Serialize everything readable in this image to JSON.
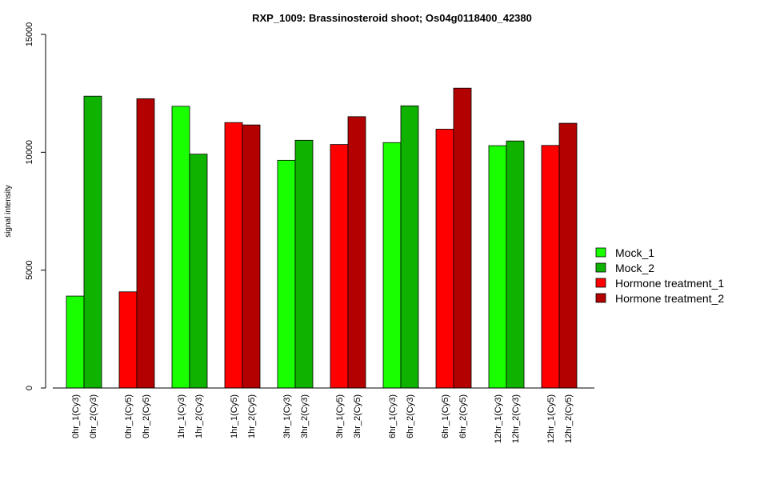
{
  "chart_data": {
    "type": "bar",
    "title": "RXP_1009: Brassinosteroid shoot; Os04g0118400_42380",
    "xlabel": "",
    "ylabel": "signal intensity",
    "ylim": [
      0,
      15000
    ],
    "yticks": [
      0,
      5000,
      10000,
      15000
    ],
    "grid": false,
    "legend_position": "right",
    "legend": [
      {
        "name": "Mock_1",
        "color": "#19ff00"
      },
      {
        "name": "Mock_2",
        "color": "#10b200"
      },
      {
        "name": "Hormone treatment_1",
        "color": "#ff0000"
      },
      {
        "name": "Hormone treatment_2",
        "color": "#b30000"
      }
    ],
    "bars": [
      {
        "label": "0hr_1(Cy3)",
        "value": 3900,
        "color": "#19ff00"
      },
      {
        "label": "0hr_2(Cy3)",
        "value": 12380,
        "color": "#10b200"
      },
      {
        "label": "0hr_1(Cy5)",
        "value": 4080,
        "color": "#ff0000"
      },
      {
        "label": "0hr_2(Cy5)",
        "value": 12270,
        "color": "#b30000"
      },
      {
        "label": "1hr_1(Cy3)",
        "value": 11950,
        "color": "#19ff00"
      },
      {
        "label": "1hr_2(Cy3)",
        "value": 9920,
        "color": "#10b200"
      },
      {
        "label": "1hr_1(Cy5)",
        "value": 11260,
        "color": "#ff0000"
      },
      {
        "label": "1hr_2(Cy5)",
        "value": 11160,
        "color": "#b30000"
      },
      {
        "label": "3hr_1(Cy3)",
        "value": 9660,
        "color": "#19ff00"
      },
      {
        "label": "3hr_2(Cy3)",
        "value": 10510,
        "color": "#10b200"
      },
      {
        "label": "3hr_1(Cy5)",
        "value": 10330,
        "color": "#ff0000"
      },
      {
        "label": "3hr_2(Cy5)",
        "value": 11510,
        "color": "#b30000"
      },
      {
        "label": "6hr_1(Cy3)",
        "value": 10410,
        "color": "#19ff00"
      },
      {
        "label": "6hr_2(Cy3)",
        "value": 11970,
        "color": "#10b200"
      },
      {
        "label": "6hr_1(Cy5)",
        "value": 10980,
        "color": "#ff0000"
      },
      {
        "label": "6hr_2(Cy5)",
        "value": 12720,
        "color": "#b30000"
      },
      {
        "label": "12hr_1(Cy3)",
        "value": 10280,
        "color": "#19ff00"
      },
      {
        "label": "12hr_2(Cy3)",
        "value": 10480,
        "color": "#10b200"
      },
      {
        "label": "12hr_1(Cy5)",
        "value": 10290,
        "color": "#ff0000"
      },
      {
        "label": "12hr_2(Cy5)",
        "value": 11230,
        "color": "#b30000"
      }
    ]
  }
}
